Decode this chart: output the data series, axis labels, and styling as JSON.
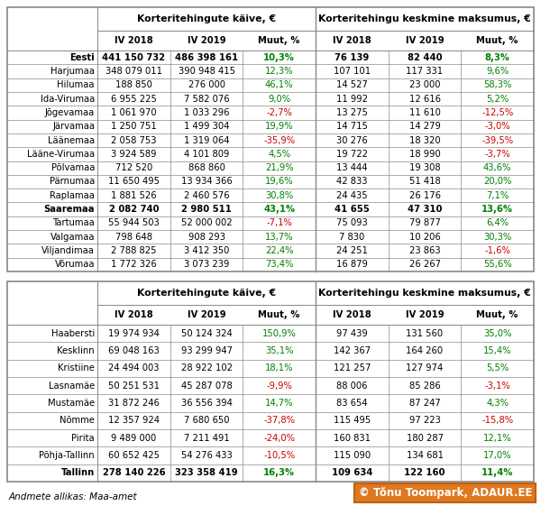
{
  "table1_rows": [
    [
      "Eesti",
      "441 150 732",
      "486 398 161",
      "10,3%",
      "76 139",
      "82 440",
      "8,3%",
      true
    ],
    [
      "Harjumaa",
      "348 079 011",
      "390 948 415",
      "12,3%",
      "107 101",
      "117 331",
      "9,6%",
      false
    ],
    [
      "Hilumaa",
      "188 850",
      "276 000",
      "46,1%",
      "14 527",
      "23 000",
      "58,3%",
      false
    ],
    [
      "Ida-Virumaa",
      "6 955 225",
      "7 582 076",
      "9,0%",
      "11 992",
      "12 616",
      "5,2%",
      false
    ],
    [
      "Jõgevamaa",
      "1 061 970",
      "1 033 296",
      "-2,7%",
      "13 275",
      "11 610",
      "-12,5%",
      false
    ],
    [
      "Järvamaa",
      "1 250 751",
      "1 499 304",
      "19,9%",
      "14 715",
      "14 279",
      "-3,0%",
      false
    ],
    [
      "Läänemaa",
      "2 058 753",
      "1 319 064",
      "-35,9%",
      "30 276",
      "18 320",
      "-39,5%",
      false
    ],
    [
      "Lääne-Virumaa",
      "3 924 589",
      "4 101 809",
      "4,5%",
      "19 722",
      "18 990",
      "-3,7%",
      false
    ],
    [
      "Põlvamaa",
      "712 520",
      "868 860",
      "21,9%",
      "13 444",
      "19 308",
      "43,6%",
      false
    ],
    [
      "Pärnumaa",
      "11 650 495",
      "13 934 366",
      "19,6%",
      "42 833",
      "51 418",
      "20,0%",
      false
    ],
    [
      "Raplamaa",
      "1 881 526",
      "2 460 576",
      "30,8%",
      "24 435",
      "26 176",
      "7,1%",
      false
    ],
    [
      "Saaremaa",
      "2 082 740",
      "2 980 511",
      "43,1%",
      "41 655",
      "47 310",
      "13,6%",
      true
    ],
    [
      "Tartumaa",
      "55 944 503",
      "52 000 002",
      "-7,1%",
      "75 093",
      "79 877",
      "6,4%",
      false
    ],
    [
      "Valgamaa",
      "798 648",
      "908 293",
      "13,7%",
      "7 830",
      "10 206",
      "30,3%",
      false
    ],
    [
      "Viljandimaa",
      "2 788 825",
      "3 412 350",
      "22,4%",
      "24 251",
      "23 863",
      "-1,6%",
      false
    ],
    [
      "Võrumaa",
      "1 772 326",
      "3 073 239",
      "73,4%",
      "16 879",
      "26 267",
      "55,6%",
      false
    ]
  ],
  "table2_rows": [
    [
      "Haabersti",
      "19 974 934",
      "50 124 324",
      "150,9%",
      "97 439",
      "131 560",
      "35,0%",
      false
    ],
    [
      "Kesklinn",
      "69 048 163",
      "93 299 947",
      "35,1%",
      "142 367",
      "164 260",
      "15,4%",
      false
    ],
    [
      "Kristiine",
      "24 494 003",
      "28 922 102",
      "18,1%",
      "121 257",
      "127 974",
      "5,5%",
      false
    ],
    [
      "Lasnamäe",
      "50 251 531",
      "45 287 078",
      "-9,9%",
      "88 006",
      "85 286",
      "-3,1%",
      false
    ],
    [
      "Mustamäe",
      "31 872 246",
      "36 556 394",
      "14,7%",
      "83 654",
      "87 247",
      "4,3%",
      false
    ],
    [
      "Nõmme",
      "12 357 924",
      "7 680 650",
      "-37,8%",
      "115 495",
      "97 223",
      "-15,8%",
      false
    ],
    [
      "Pirita",
      "9 489 000",
      "7 211 491",
      "-24,0%",
      "160 831",
      "180 287",
      "12,1%",
      false
    ],
    [
      "Põhja-Tallinn",
      "60 652 425",
      "54 276 433",
      "-10,5%",
      "115 090",
      "134 681",
      "17,0%",
      false
    ],
    [
      "Tallinn",
      "278 140 226",
      "323 358 419",
      "16,3%",
      "109 634",
      "122 160",
      "11,4%",
      true
    ]
  ],
  "header1": "Korteritehingute käive, €",
  "header2": "Korteritehingu keskmine maksumus, €",
  "col_headers": [
    "IV 2018",
    "IV 2019",
    "Muut, %",
    "IV 2018",
    "IV 2019",
    "Muut, %"
  ],
  "footer": "Andmete allikas: Maa-amet",
  "copyright": "© Tõnu Toompark, ADAUR.EE",
  "green_color": "#008000",
  "red_color": "#cc0000",
  "black_color": "#000000",
  "border_color": "#888888",
  "copyright_bg": "#e07820",
  "copyright_border": "#c06010"
}
